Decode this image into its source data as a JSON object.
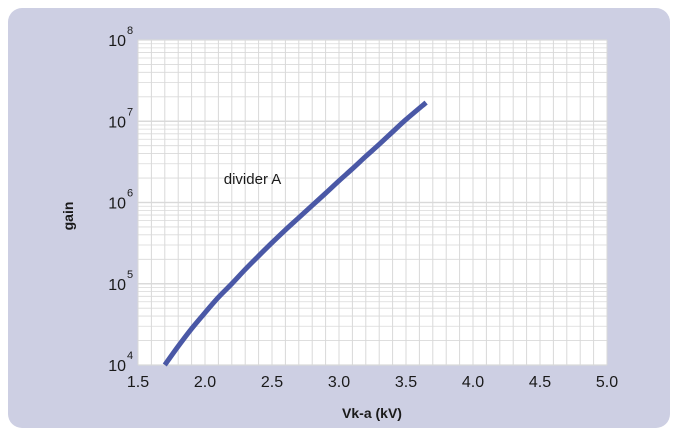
{
  "chart_data": {
    "type": "line",
    "xlabel": "Vk-a (kV)",
    "ylabel": "gain",
    "xlim": [
      1.5,
      5.0
    ],
    "ylim": [
      10000,
      100000000
    ],
    "y_scale": "log",
    "x_ticks": [
      "1.5",
      "2.0",
      "2.5",
      "3.0",
      "3.5",
      "4.0",
      "4.5",
      "5.0"
    ],
    "y_ticks": [
      {
        "base": "10",
        "exp": "4"
      },
      {
        "base": "10",
        "exp": "5"
      },
      {
        "base": "10",
        "exp": "6"
      },
      {
        "base": "10",
        "exp": "7"
      },
      {
        "base": "10",
        "exp": "8"
      }
    ],
    "grid": true,
    "series": [
      {
        "name": "divider A",
        "color": "#4a58a6",
        "x": [
          1.7,
          1.8,
          1.9,
          2.0,
          2.1,
          2.2,
          2.3,
          2.4,
          2.5,
          2.6,
          2.7,
          2.8,
          2.9,
          3.0,
          3.1,
          3.2,
          3.3,
          3.4,
          3.5,
          3.65
        ],
        "y": [
          10000,
          17000,
          28000,
          44000,
          68000,
          100000,
          150000,
          220000,
          320000,
          460000,
          650000,
          920000,
          1300000,
          1850000,
          2600000,
          3700000,
          5200000,
          7400000,
          10500000,
          17000000
        ]
      }
    ],
    "annotations": [
      {
        "text": "divider A",
        "x": 2.14,
        "y": 1700000
      }
    ]
  }
}
